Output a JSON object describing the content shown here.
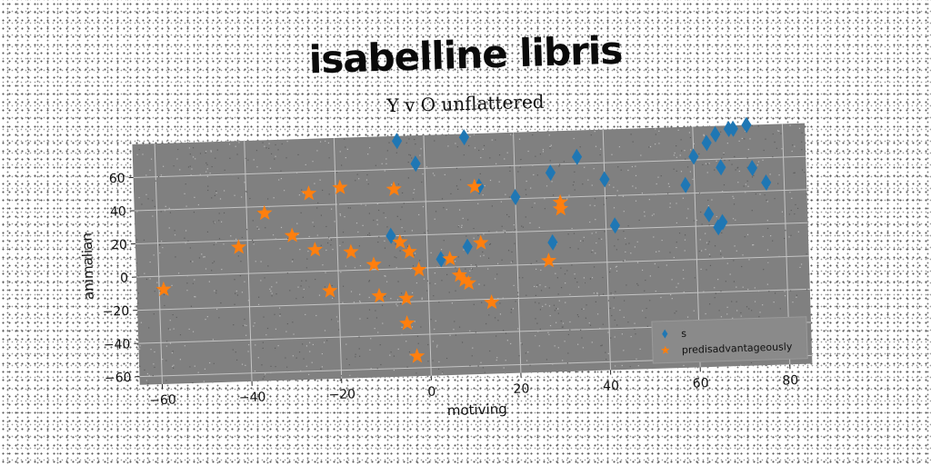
{
  "header": {
    "headline": "isabelline libris"
  },
  "chart_data": {
    "type": "scatter",
    "title": "Y v O unflattered",
    "xlabel": "motiving",
    "ylabel": "animalian",
    "xlim": [
      -65,
      85
    ],
    "ylim": [
      -65,
      80
    ],
    "xticks": [
      -60,
      -40,
      -20,
      0,
      20,
      40,
      60,
      80
    ],
    "yticks": [
      -60,
      -40,
      -20,
      0,
      20,
      40,
      60
    ],
    "grid": true,
    "legend_position": "bottom-right",
    "series": [
      {
        "name": "s",
        "marker": "diamond",
        "color": "#1f77b4",
        "points": [
          [
            -6,
            77
          ],
          [
            -2,
            63
          ],
          [
            9,
            78
          ],
          [
            12,
            48
          ],
          [
            20,
            41
          ],
          [
            28,
            55
          ],
          [
            28,
            13
          ],
          [
            34,
            64
          ],
          [
            40,
            50
          ],
          [
            42,
            22
          ],
          [
            -8,
            20
          ],
          [
            3,
            5
          ],
          [
            9,
            12
          ],
          [
            58,
            45
          ],
          [
            60,
            62
          ],
          [
            63,
            70
          ],
          [
            65,
            75
          ],
          [
            66,
            55
          ],
          [
            68,
            78
          ],
          [
            69,
            78
          ],
          [
            72,
            80
          ],
          [
            73,
            54
          ],
          [
            76,
            45
          ],
          [
            63,
            27
          ],
          [
            65,
            19
          ],
          [
            66,
            22
          ]
        ]
      },
      {
        "name": "predisadvantageously",
        "marker": "star",
        "color": "#ff7f0e",
        "points": [
          [
            -59,
            -8
          ],
          [
            -42,
            16
          ],
          [
            -36,
            36
          ],
          [
            -30,
            22
          ],
          [
            -26,
            47
          ],
          [
            -25,
            13
          ],
          [
            -22,
            -12
          ],
          [
            -19,
            50
          ],
          [
            -17,
            11
          ],
          [
            -12,
            3
          ],
          [
            -11,
            -16
          ],
          [
            -7,
            48
          ],
          [
            -6,
            16
          ],
          [
            -5,
            -18
          ],
          [
            -5,
            -33
          ],
          [
            -4,
            10
          ],
          [
            -3,
            -53
          ],
          [
            -2,
            -1
          ],
          [
            5,
            5
          ],
          [
            7,
            -5
          ],
          [
            8,
            -8
          ],
          [
            9,
            -10
          ],
          [
            11,
            48
          ],
          [
            12,
            14
          ],
          [
            14,
            -22
          ],
          [
            27,
            2
          ],
          [
            30,
            37
          ],
          [
            30,
            33
          ]
        ]
      }
    ]
  }
}
